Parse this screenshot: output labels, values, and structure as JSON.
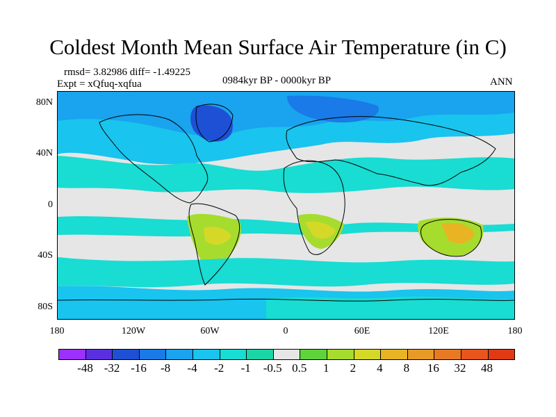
{
  "title": "Coldest Month Mean Surface Air Temperature (in C)",
  "stats": "rmsd= 3.82986  diff= -1.49225",
  "experiment": "Expt = xQfuq-xqfua",
  "period": "0984kyr BP - 0000kyr BP",
  "season": "ANN",
  "map": {
    "projection": "cylindrical equidistant",
    "lon_range": [
      -180,
      180
    ],
    "lat_range": [
      -90,
      90
    ],
    "lat_ticks": [
      "80N",
      "40N",
      "0",
      "40S",
      "80S"
    ],
    "lon_ticks": [
      "180",
      "120W",
      "60W",
      "0",
      "60E",
      "120E",
      "180"
    ]
  },
  "colorbar": {
    "colors": [
      "#9b30ff",
      "#5a2fe0",
      "#1e50d6",
      "#1a7ae8",
      "#1aa3ee",
      "#19c4ee",
      "#19dcd2",
      "#1ad6a6",
      "#e6e6e6",
      "#5fd43a",
      "#a6dc2e",
      "#d6d828",
      "#e8b424",
      "#e89a26",
      "#e87a24",
      "#e8561e",
      "#e03a14"
    ],
    "labels": [
      "-48",
      "-32",
      "-16",
      "-8",
      "-4",
      "-2",
      "-1",
      "-0.5",
      "0.5",
      "1",
      "2",
      "4",
      "8",
      "16",
      "32",
      "48"
    ]
  }
}
